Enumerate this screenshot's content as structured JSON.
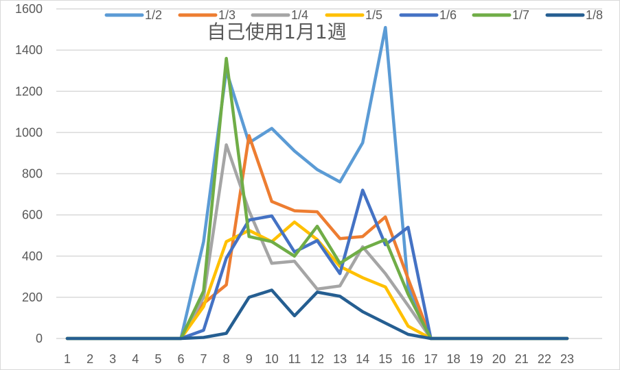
{
  "chart_data": {
    "type": "line",
    "title": "自己使用1月1週",
    "xlabel": "",
    "ylabel": "",
    "x": [
      1,
      2,
      3,
      4,
      5,
      6,
      7,
      8,
      9,
      10,
      11,
      12,
      13,
      14,
      15,
      16,
      17,
      18,
      19,
      20,
      21,
      22,
      23
    ],
    "ylim": [
      0,
      1600
    ],
    "yticks": [
      0,
      200,
      400,
      600,
      800,
      1000,
      1200,
      1400,
      1600
    ],
    "grid": true,
    "legend_position": "top",
    "series": [
      {
        "name": "1/2",
        "color": "#5B9BD5",
        "values": [
          0,
          0,
          0,
          0,
          0,
          0,
          470,
          1300,
          950,
          1020,
          910,
          820,
          760,
          950,
          1510,
          250,
          0,
          0,
          0,
          0,
          0,
          0,
          0
        ]
      },
      {
        "name": "1/3",
        "color": "#ED7D31",
        "values": [
          0,
          0,
          0,
          0,
          0,
          0,
          170,
          260,
          985,
          665,
          620,
          615,
          485,
          495,
          590,
          290,
          0,
          0,
          0,
          0,
          0,
          0,
          0
        ]
      },
      {
        "name": "1/4",
        "color": "#A5A5A5",
        "values": [
          0,
          0,
          0,
          0,
          0,
          0,
          200,
          940,
          620,
          365,
          375,
          240,
          255,
          445,
          315,
          160,
          0,
          0,
          0,
          0,
          0,
          0,
          0
        ]
      },
      {
        "name": "1/5",
        "color": "#FFC000",
        "values": [
          0,
          0,
          0,
          0,
          0,
          0,
          155,
          470,
          525,
          470,
          565,
          480,
          350,
          295,
          250,
          60,
          0,
          0,
          0,
          0,
          0,
          0,
          0
        ]
      },
      {
        "name": "1/6",
        "color": "#4472C4",
        "values": [
          0,
          0,
          0,
          0,
          0,
          0,
          40,
          390,
          575,
          595,
          420,
          475,
          315,
          720,
          455,
          540,
          0,
          0,
          0,
          0,
          0,
          0,
          0
        ]
      },
      {
        "name": "1/7",
        "color": "#70AD47",
        "values": [
          0,
          0,
          0,
          0,
          0,
          0,
          230,
          1360,
          495,
          470,
          400,
          545,
          365,
          435,
          480,
          215,
          0,
          0,
          0,
          0,
          0,
          0,
          0
        ]
      },
      {
        "name": "1/8",
        "color": "#255E91",
        "values": [
          0,
          0,
          0,
          0,
          0,
          0,
          5,
          25,
          200,
          235,
          110,
          225,
          205,
          130,
          75,
          20,
          0,
          0,
          0,
          0,
          0,
          0,
          0
        ]
      }
    ]
  }
}
